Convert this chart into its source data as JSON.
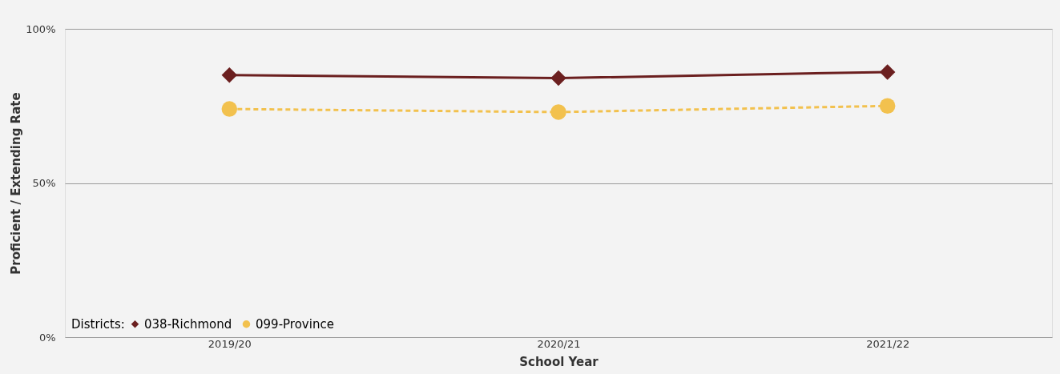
{
  "chart_data": {
    "type": "line",
    "xlabel": "School Year",
    "ylabel": "Proficient / Extending Rate",
    "legend_title": "Districts:",
    "categories": [
      "2019/20",
      "2020/21",
      "2021/22"
    ],
    "series": [
      {
        "name": "038-Richmond",
        "color": "#6b1f1f",
        "values": [
          85,
          84,
          86
        ],
        "marker": "diamond",
        "line_style": "solid"
      },
      {
        "name": "099-Province",
        "color": "#f2c14e",
        "values": [
          74,
          73,
          75
        ],
        "marker": "circle",
        "line_style": "dashed"
      }
    ],
    "ylim": [
      0,
      100
    ],
    "yticks": [
      {
        "value": 0,
        "label": "0%"
      },
      {
        "value": 50,
        "label": "50%"
      },
      {
        "value": 100,
        "label": "100%"
      }
    ],
    "grid": "y",
    "legend": "bottom left"
  }
}
